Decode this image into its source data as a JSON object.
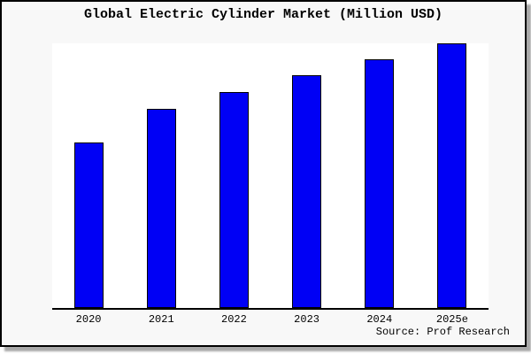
{
  "chart_data": {
    "type": "bar",
    "title": "Global Electric Cylinder Market (Million USD)",
    "categories": [
      "2020",
      "2021",
      "2022",
      "2023",
      "2024",
      "2025e"
    ],
    "values": [
      62.6,
      75.2,
      81.6,
      87.8,
      94.0,
      100.0
    ],
    "values_unit": "relative bar height, percent of tallest bar (2025e); chart shows no numeric y-axis ticks",
    "xlabel": "",
    "ylabel": "",
    "ylim": [
      0,
      100
    ],
    "grid": false,
    "legend": "none",
    "bar_color": "#0000f5",
    "bar_border_color": "#000000"
  },
  "source": {
    "text": "Source: Prof Research"
  },
  "colors": {
    "page_background": "#ffffff",
    "card_background": "#f8f8f8",
    "card_border": "#000000",
    "card_shadow": "#a8a8a8",
    "plot_background": "#ffffff",
    "axis_line": "#000000",
    "text": "#000000"
  }
}
